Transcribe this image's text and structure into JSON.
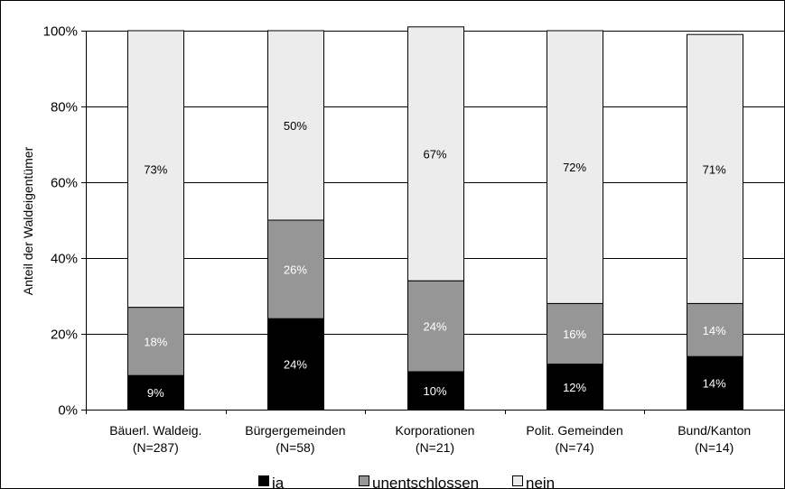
{
  "chart_data": {
    "type": "bar",
    "stacked": true,
    "ylabel": "Anteil der Waldeigentümer",
    "ylim": [
      0,
      100
    ],
    "y_ticks": [
      "0%",
      "20%",
      "40%",
      "60%",
      "80%",
      "100%"
    ],
    "y_tick_values": [
      0,
      20,
      40,
      60,
      80,
      100
    ],
    "grid": true,
    "legend_position": "bottom",
    "categories": [
      [
        "Bäuerl. Waldeig.",
        "(N=287)"
      ],
      [
        "Bürgergemeinden",
        "(N=58)"
      ],
      [
        "Korporationen",
        "(N=21)"
      ],
      [
        "Polit. Gemeinden",
        "(N=74)"
      ],
      [
        "Bund/Kanton",
        "(N=14)"
      ]
    ],
    "series": [
      {
        "name": "ja",
        "color": "#000000",
        "label_color": "#ffffff",
        "values": [
          9,
          24,
          10,
          12,
          14
        ],
        "labels": [
          "9%",
          "24%",
          "10%",
          "12%",
          "14%"
        ]
      },
      {
        "name": "unentschlossen",
        "color": "#969696",
        "label_color": "#ffffff",
        "values": [
          18,
          26,
          24,
          16,
          14
        ],
        "labels": [
          "18%",
          "26%",
          "24%",
          "16%",
          "14%"
        ]
      },
      {
        "name": "nein",
        "color": "#ececec",
        "label_color": "#000000",
        "values": [
          73,
          50,
          67,
          72,
          71
        ],
        "labels": [
          "73%",
          "50%",
          "67%",
          "72%",
          "71%"
        ]
      }
    ]
  }
}
